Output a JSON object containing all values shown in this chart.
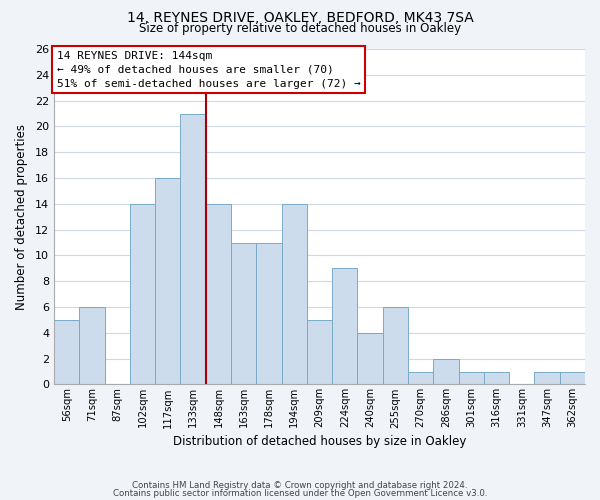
{
  "title_line1": "14, REYNES DRIVE, OAKLEY, BEDFORD, MK43 7SA",
  "title_line2": "Size of property relative to detached houses in Oakley",
  "xlabel": "Distribution of detached houses by size in Oakley",
  "ylabel": "Number of detached properties",
  "bar_labels": [
    "56sqm",
    "71sqm",
    "87sqm",
    "102sqm",
    "117sqm",
    "133sqm",
    "148sqm",
    "163sqm",
    "178sqm",
    "194sqm",
    "209sqm",
    "224sqm",
    "240sqm",
    "255sqm",
    "270sqm",
    "286sqm",
    "301sqm",
    "316sqm",
    "331sqm",
    "347sqm",
    "362sqm"
  ],
  "bar_values": [
    5,
    6,
    0,
    14,
    16,
    21,
    14,
    11,
    11,
    14,
    5,
    9,
    4,
    6,
    1,
    2,
    1,
    1,
    0,
    1,
    1
  ],
  "bar_color": "#ccdcec",
  "bar_edge_color": "#7aaac8",
  "vline_color": "#aa0000",
  "ylim": [
    0,
    26
  ],
  "yticks": [
    0,
    2,
    4,
    6,
    8,
    10,
    12,
    14,
    16,
    18,
    20,
    22,
    24,
    26
  ],
  "annotation_title": "14 REYNES DRIVE: 144sqm",
  "annotation_line1": "← 49% of detached houses are smaller (70)",
  "annotation_line2": "51% of semi-detached houses are larger (72) →",
  "annotation_box_color": "#ffffff",
  "annotation_box_edge": "#cc0000",
  "footer_line1": "Contains HM Land Registry data © Crown copyright and database right 2024.",
  "footer_line2": "Contains public sector information licensed under the Open Government Licence v3.0.",
  "bg_color": "#f0f4f8",
  "plot_bg_color": "#ffffff",
  "grid_color": "#d0d8e4"
}
